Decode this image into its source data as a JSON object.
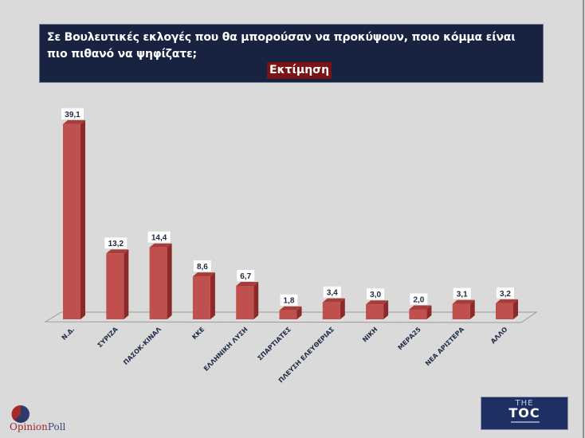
{
  "header": {
    "title": "Σε Βουλευτικές εκλογές που θα μπορούσαν να προκύψουν, ποιο κόμμα είναι πιο πιθανό να ψηφίζατε;",
    "badge": "Εκτίμηση"
  },
  "colors": {
    "background": "#dadada",
    "header_bg": "#172340",
    "badge_bg": "#7a1414",
    "bar_front": "#c0504d",
    "bar_side": "#8b2a28",
    "bar_top": "#a73d3a",
    "label_text": "#1f2a44"
  },
  "logos": {
    "left": {
      "part1": "Opinion",
      "part2": "Poll"
    },
    "right": {
      "the": "THE",
      "main": "TOC"
    }
  },
  "chart_data": {
    "type": "bar",
    "title": "Σε Βουλευτικές εκλογές που θα μπορούσαν να προκύψουν, ποιο κόμμα είναι πιο πιθανό να ψηφίζατε;",
    "subtitle": "Εκτίμηση",
    "categories": [
      "Ν.Δ.",
      "ΣΥΡΙΖΑ",
      "ΠΑΣΟΚ-ΚΙΝΑΛ",
      "ΚΚΕ",
      "ΕΛΛΗΝΙΚΗ ΛΥΣΗ",
      "ΣΠΑΡΤΙΑΤΕΣ",
      "ΠΛΕΥΣΗ ΕΛΕΥΘΕΡΙΑΣ",
      "ΝΙΚΗ",
      "ΜΕΡΑ25",
      "ΝΕΑ ΑΡΙΣΤΕΡΑ",
      "ΑΛΛΟ"
    ],
    "values": [
      39.1,
      13.2,
      14.4,
      8.6,
      6.7,
      1.8,
      3.4,
      3.0,
      2.0,
      3.1,
      3.2
    ],
    "value_labels": [
      "39,1",
      "13,2",
      "14,4",
      "8,6",
      "6,7",
      "1,8",
      "3,4",
      "3,0",
      "2,0",
      "3,1",
      "3,2"
    ],
    "xlabel": "",
    "ylabel": "",
    "ylim": [
      0,
      40
    ],
    "grid": false,
    "legend": "none",
    "style": "3d-column"
  }
}
